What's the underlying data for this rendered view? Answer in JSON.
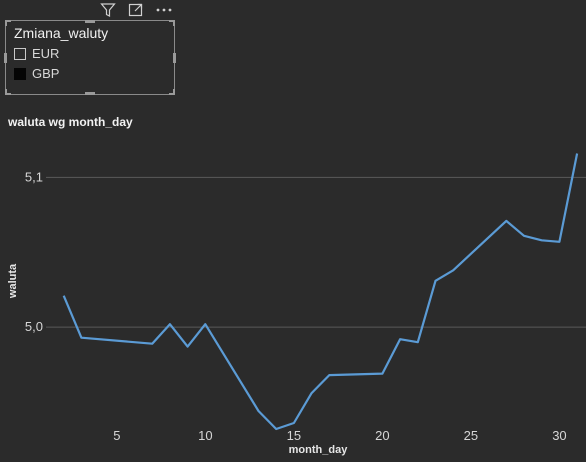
{
  "toolbar": {
    "icons": [
      "filter-icon",
      "focus-mode-icon",
      "more-options-icon"
    ]
  },
  "slicer": {
    "title": "Zmiana_waluty",
    "items": [
      {
        "label": "EUR",
        "selected": false
      },
      {
        "label": "GBP",
        "selected": true
      }
    ]
  },
  "visual": {
    "title": "waluta wg month_day"
  },
  "chart_data": {
    "type": "line",
    "title": "waluta wg month_day",
    "xlabel": "month_day",
    "ylabel": "waluta",
    "x_ticks": [
      5,
      10,
      15,
      20,
      25,
      30
    ],
    "y_ticks": [
      5.0,
      5.1
    ],
    "y_tick_labels": [
      "5,0",
      "5,1"
    ],
    "xlim": [
      1,
      31.5
    ],
    "ylim": [
      4.93,
      5.125
    ],
    "grid": true,
    "series": [
      {
        "color": "#5b9bd5",
        "points": [
          [
            2,
            5.021
          ],
          [
            3,
            4.993
          ],
          [
            7,
            4.989
          ],
          [
            8,
            5.002
          ],
          [
            9,
            4.987
          ],
          [
            10,
            5.002
          ],
          [
            13,
            4.944
          ],
          [
            14,
            4.932
          ],
          [
            15,
            4.936
          ],
          [
            16,
            4.956
          ],
          [
            17,
            4.968
          ],
          [
            20,
            4.969
          ],
          [
            21,
            4.992
          ],
          [
            22,
            4.99
          ],
          [
            23,
            5.031
          ],
          [
            24,
            5.038
          ],
          [
            27,
            5.071
          ],
          [
            28,
            5.061
          ],
          [
            29,
            5.058
          ],
          [
            30,
            5.057
          ],
          [
            31,
            5.116
          ]
        ]
      }
    ]
  }
}
